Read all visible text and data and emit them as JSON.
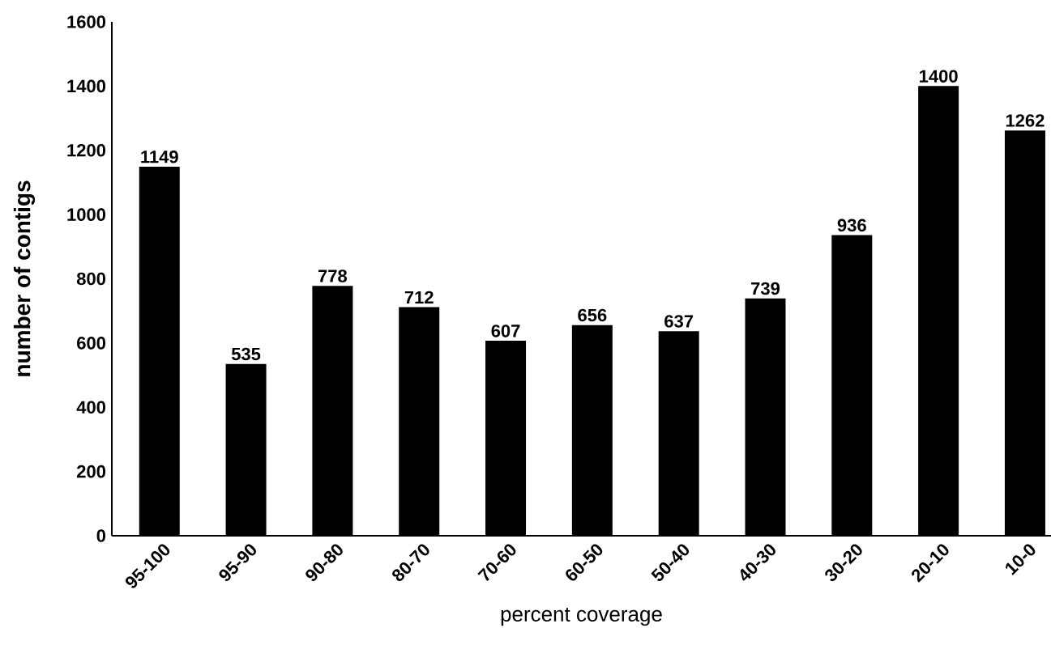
{
  "chart_data": {
    "type": "bar",
    "xlabel": "percent coverage",
    "ylabel": "number of contigs",
    "categories": [
      "95-100",
      "95-90",
      "90-80",
      "80-70",
      "70-60",
      "60-50",
      "50-40",
      "40-30",
      "30-20",
      "20-10",
      "10-0"
    ],
    "values": [
      1149,
      535,
      778,
      712,
      607,
      656,
      637,
      739,
      936,
      1400,
      1262
    ],
    "color": "#000000",
    "ylim": [
      0,
      1600
    ],
    "yticks": [
      0,
      200,
      400,
      600,
      800,
      1000,
      1200,
      1400,
      1600
    ],
    "data_labels": true
  }
}
